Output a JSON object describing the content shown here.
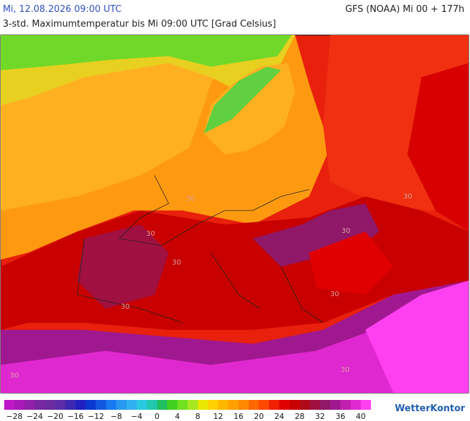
{
  "header": {
    "date": "Mi, 12.08.2026 09:00 UTC",
    "model": "GFS (NOAA) Mi 00 + 177h",
    "subtitle": "3-std. Maximumtemperatur bis Mi 09:00 UTC [Grad Celsius]"
  },
  "map": {
    "contour_labels": [
      "30",
      "30",
      "30",
      "30",
      "30",
      "30",
      "30",
      "30",
      "30"
    ]
  },
  "legend": {
    "labels": [
      "−28",
      "−24",
      "−20",
      "−16",
      "−12",
      "−8",
      "−4",
      "0",
      "4",
      "8",
      "12",
      "16",
      "20",
      "24",
      "28",
      "32",
      "36",
      "40"
    ],
    "colors": [
      "#c018c8",
      "#a818b8",
      "#9020a8",
      "#7828a0",
      "#6a2aa0",
      "#5a2ca8",
      "#3c28b0",
      "#2020c0",
      "#0838d0",
      "#1058e0",
      "#1878f0",
      "#2898f0",
      "#30b0f0",
      "#28c8e0",
      "#20c8b0",
      "#20c060",
      "#40d020",
      "#70e020",
      "#a8e820",
      "#e8e800",
      "#ffd000",
      "#ffb800",
      "#ffa000",
      "#ff8800",
      "#ff6800",
      "#ff4800",
      "#f02000",
      "#e00000",
      "#c80000",
      "#b00818",
      "#a01040",
      "#901868",
      "#a01890",
      "#c020b0",
      "#e028d0",
      "#ff40f0"
    ]
  },
  "logo": "WetterKontor"
}
